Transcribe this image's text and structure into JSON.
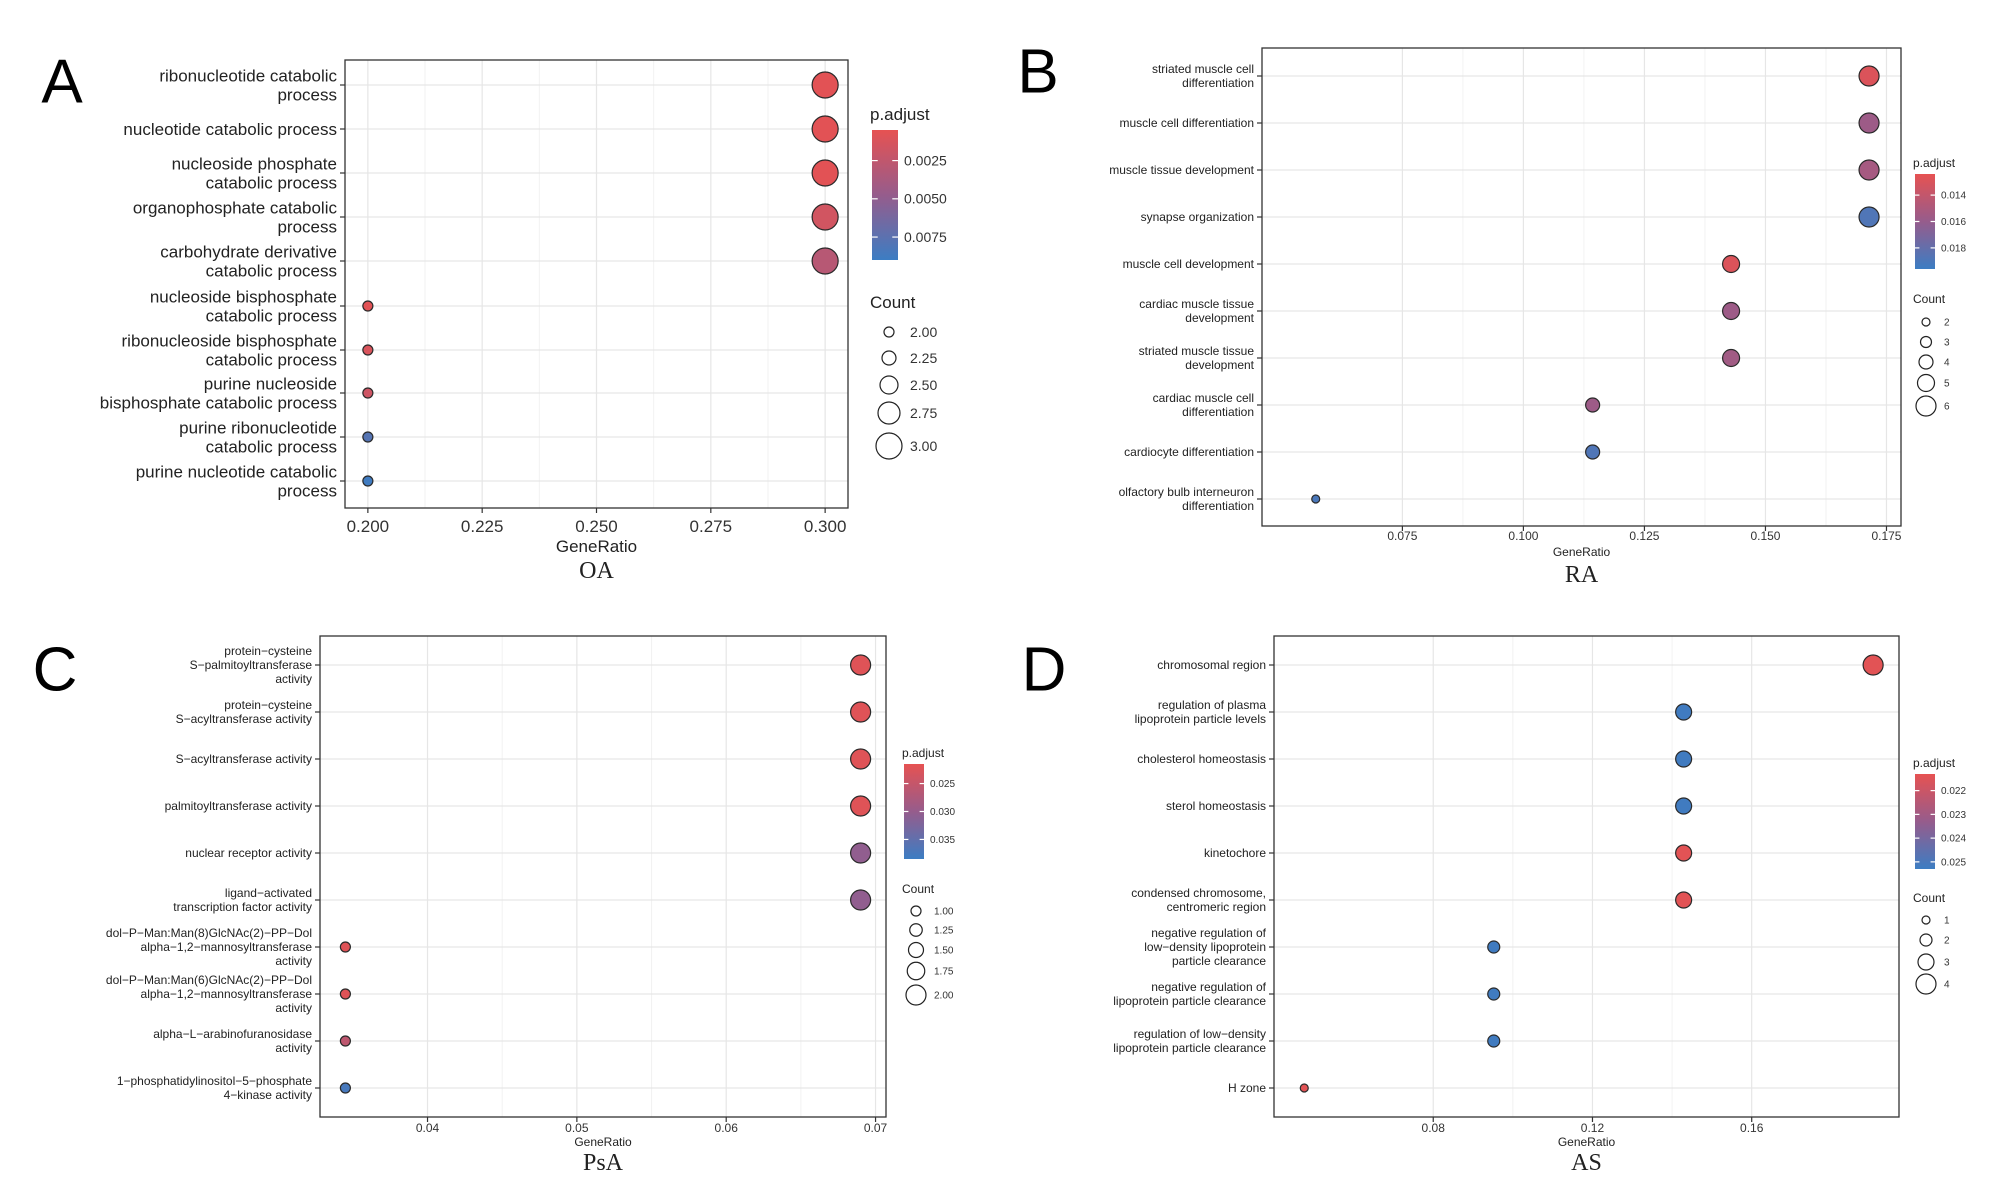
{
  "figure": {
    "panels": [
      "A",
      "B",
      "C",
      "D"
    ]
  },
  "chart_data": [
    {
      "panel": "A",
      "type": "scatter",
      "subtype": "dot-plot",
      "caption": "OA",
      "xlabel": "GeneRatio",
      "xlim": [
        0.195,
        0.305
      ],
      "xticks": [
        0.2,
        0.225,
        0.25,
        0.275,
        0.3
      ],
      "xtick_labels": [
        "0.200",
        "0.225",
        "0.250",
        "0.275",
        "0.300"
      ],
      "categories": [
        [
          "ribonucleotide catabolic",
          "process"
        ],
        [
          "nucleotide catabolic process"
        ],
        [
          "nucleoside phosphate",
          "catabolic process"
        ],
        [
          "organophosphate catabolic",
          "process"
        ],
        [
          "carbohydrate derivative",
          "catabolic process"
        ],
        [
          "nucleoside bisphosphate",
          "catabolic process"
        ],
        [
          "ribonucleoside bisphosphate",
          "catabolic process"
        ],
        [
          "purine nucleoside",
          "bisphosphate catabolic process"
        ],
        [
          "purine ribonucleotide",
          "catabolic process"
        ],
        [
          "purine nucleotide catabolic",
          "process"
        ]
      ],
      "gene_ratio": [
        0.3,
        0.3,
        0.3,
        0.3,
        0.3,
        0.2,
        0.2,
        0.2,
        0.2,
        0.2
      ],
      "count": [
        3,
        3,
        3,
        3,
        3,
        2,
        2,
        2,
        2,
        2
      ],
      "p_adjust": [
        0.0007,
        0.0007,
        0.0007,
        0.0016,
        0.003,
        0.0007,
        0.0012,
        0.0018,
        0.0078,
        0.0088
      ],
      "legend_color": {
        "title": "p.adjust",
        "min": 0.0005,
        "max": 0.009,
        "ticks": [
          "0.0025",
          "0.0050",
          "0.0075"
        ]
      },
      "legend_size": {
        "title": "Count",
        "ticks": [
          "2.00",
          "2.25",
          "2.50",
          "2.75",
          "3.00"
        ]
      }
    },
    {
      "panel": "B",
      "type": "scatter",
      "subtype": "dot-plot",
      "caption": "RA",
      "xlabel": "GeneRatio",
      "xlim": [
        0.046,
        0.178
      ],
      "xticks": [
        0.075,
        0.1,
        0.125,
        0.15,
        0.175
      ],
      "xtick_labels": [
        "0.075",
        "0.100",
        "0.125",
        "0.150",
        "0.175"
      ],
      "categories": [
        [
          "striated muscle cell",
          "differentiation"
        ],
        [
          "muscle cell differentiation"
        ],
        [
          "muscle tissue development"
        ],
        [
          "synapse organization"
        ],
        [
          "muscle cell development"
        ],
        [
          "cardiac muscle tissue",
          "development"
        ],
        [
          "striated muscle tissue",
          "development"
        ],
        [
          "cardiac muscle cell",
          "differentiation"
        ],
        [
          "cardiocyte differentiation"
        ],
        [
          "olfactory bulb interneuron",
          "differentiation"
        ]
      ],
      "gene_ratio": [
        0.1714,
        0.1714,
        0.1714,
        0.1714,
        0.1429,
        0.1429,
        0.1429,
        0.1143,
        0.1143,
        0.0571
      ],
      "count": [
        6,
        6,
        6,
        6,
        5,
        5,
        5,
        4,
        4,
        2
      ],
      "p_adjust": [
        0.0129,
        0.0157,
        0.0153,
        0.0188,
        0.0129,
        0.0157,
        0.0155,
        0.0157,
        0.0188,
        0.019
      ],
      "legend_color": {
        "title": "p.adjust",
        "min": 0.0124,
        "max": 0.0196,
        "ticks": [
          "0.014",
          "0.016",
          "0.018"
        ]
      },
      "legend_size": {
        "title": "Count",
        "ticks": [
          "2",
          "3",
          "4",
          "5",
          "6"
        ]
      }
    },
    {
      "panel": "C",
      "type": "scatter",
      "subtype": "dot-plot",
      "caption": "PsA",
      "xlabel": "GeneRatio",
      "xlim": [
        0.0328,
        0.0707
      ],
      "xticks": [
        0.04,
        0.05,
        0.06,
        0.07
      ],
      "xtick_labels": [
        "0.04",
        "0.05",
        "0.06",
        "0.07"
      ],
      "categories": [
        [
          "protein−cysteine",
          "S−palmitoyltransferase",
          "activity"
        ],
        [
          "protein−cysteine",
          "S−acyltransferase activity"
        ],
        [
          "S−acyltransferase activity"
        ],
        [
          "palmitoyltransferase activity"
        ],
        [
          "nuclear receptor activity"
        ],
        [
          "ligand−activated",
          "transcription factor activity"
        ],
        [
          "dol−P−Man:Man(8)GlcNAc(2)−PP−Dol",
          "alpha−1,2−mannosyltransferase",
          "activity"
        ],
        [
          "dol−P−Man:Man(6)GlcNAc(2)−PP−Dol",
          "alpha−1,2−mannosyltransferase",
          "activity"
        ],
        [
          "alpha−L−arabinofuranosidase",
          "activity"
        ],
        [
          "1−phosphatidylinositol−5−phosphate",
          "4−kinase activity"
        ]
      ],
      "gene_ratio": [
        0.069,
        0.069,
        0.069,
        0.069,
        0.069,
        0.069,
        0.0345,
        0.0345,
        0.0345,
        0.0345
      ],
      "count": [
        2,
        2,
        2,
        2,
        2,
        2,
        1,
        1,
        1,
        1
      ],
      "p_adjust": [
        0.0222,
        0.0222,
        0.0222,
        0.0222,
        0.0305,
        0.0305,
        0.0222,
        0.0222,
        0.0258,
        0.0375
      ],
      "legend_color": {
        "title": "p.adjust",
        "min": 0.0215,
        "max": 0.0385,
        "ticks": [
          "0.025",
          "0.030",
          "0.035"
        ]
      },
      "legend_size": {
        "title": "Count",
        "ticks": [
          "1.00",
          "1.25",
          "1.50",
          "1.75",
          "2.00"
        ]
      }
    },
    {
      "panel": "D",
      "type": "scatter",
      "subtype": "dot-plot",
      "caption": "AS",
      "xlabel": "GeneRatio",
      "xlim": [
        0.04,
        0.197
      ],
      "xticks": [
        0.08,
        0.12,
        0.16
      ],
      "xtick_labels": [
        "0.08",
        "0.12",
        "0.16"
      ],
      "categories": [
        [
          "chromosomal region"
        ],
        [
          "regulation of plasma",
          "lipoprotein particle levels"
        ],
        [
          "cholesterol homeostasis"
        ],
        [
          "sterol homeostasis"
        ],
        [
          "kinetochore"
        ],
        [
          "condensed chromosome,",
          "centromeric region"
        ],
        [
          "negative regulation of",
          "low−density lipoprotein",
          "particle clearance"
        ],
        [
          "negative regulation of",
          "lipoprotein particle clearance"
        ],
        [
          "regulation of low−density",
          "lipoprotein particle clearance"
        ],
        [
          "H zone"
        ]
      ],
      "gene_ratio": [
        0.1905,
        0.1429,
        0.1429,
        0.1429,
        0.1429,
        0.1429,
        0.0952,
        0.0952,
        0.0952,
        0.0476
      ],
      "count": [
        4,
        3,
        3,
        3,
        3,
        3,
        2,
        2,
        2,
        1
      ],
      "p_adjust": [
        0.0214,
        0.0252,
        0.0252,
        0.0252,
        0.0214,
        0.0214,
        0.0252,
        0.0252,
        0.0252,
        0.0214
      ],
      "legend_color": {
        "title": "p.adjust",
        "min": 0.0213,
        "max": 0.0253,
        "ticks": [
          "0.022",
          "0.023",
          "0.024",
          "0.025"
        ]
      },
      "legend_size": {
        "title": "Count",
        "ticks": [
          "1",
          "2",
          "3",
          "4"
        ]
      }
    }
  ]
}
